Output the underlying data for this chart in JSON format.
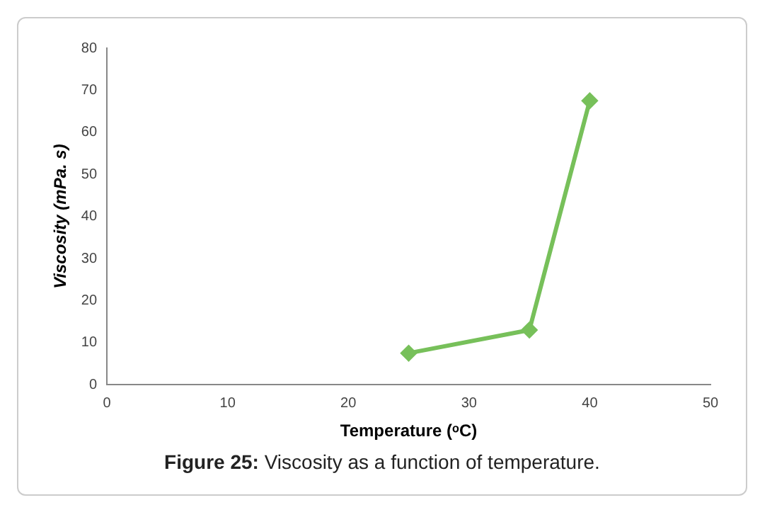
{
  "chart_data": {
    "type": "line",
    "xlabel": "Temperature (ᵒC)",
    "ylabel": "Viscosity (mPa. s)",
    "annotations": [
      "Figure 25: Viscosity as a function of temperature."
    ],
    "x": [
      25,
      35,
      40
    ],
    "series": [
      {
        "color": "#77c05a",
        "values": [
          7.5,
          13,
          67.5
        ]
      }
    ],
    "xlim": [
      0,
      50
    ],
    "xticks": [
      0,
      10,
      20,
      30,
      40,
      50
    ],
    "ylim": [
      0,
      80
    ],
    "yticks": [
      0,
      10,
      20,
      30,
      40,
      50,
      60,
      70,
      80
    ],
    "grid": false,
    "legend": false,
    "marker": "diamond",
    "line_style": "solid"
  }
}
